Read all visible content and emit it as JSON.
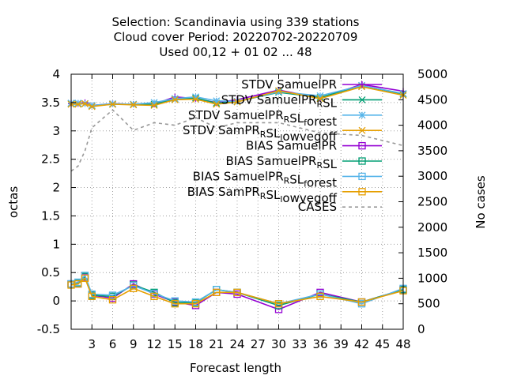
{
  "chart_data": {
    "type": "line",
    "title_lines": [
      "Selection: Scandinavia using   339 stations",
      "Cloud cover   Period: 20220702-20220709",
      "Used  00,12  + 01 02 ... 48"
    ],
    "xlabel": "Forecast length",
    "ylabel": "octas",
    "y2label": "No cases",
    "xlim": [
      0,
      48
    ],
    "ylim": [
      -0.5,
      4
    ],
    "y2lim": [
      0,
      5000
    ],
    "xticks": [
      3,
      6,
      9,
      12,
      15,
      18,
      21,
      24,
      27,
      30,
      33,
      36,
      39,
      42,
      45,
      48
    ],
    "yticks": [
      "-0.5",
      "0",
      "0.5",
      "1",
      "1.5",
      "2",
      "2.5",
      "3",
      "3.5",
      "4"
    ],
    "y2ticks": [
      0,
      500,
      1000,
      1500,
      2000,
      2500,
      3000,
      3500,
      4000,
      4500,
      5000
    ],
    "legend_position": "top-right",
    "x": [
      0,
      1,
      2,
      3,
      6,
      9,
      12,
      15,
      18,
      21,
      24,
      30,
      36,
      42,
      48
    ],
    "series": [
      {
        "name": "STDV SamuelPR",
        "name_parts": [
          [
            "STDV SamuelPR",
            ""
          ]
        ],
        "color": "#9400d3",
        "marker": "plus",
        "dash": "",
        "axis": "y",
        "values": [
          3.48,
          3.48,
          3.5,
          3.45,
          3.48,
          3.47,
          3.47,
          3.6,
          3.57,
          3.5,
          3.55,
          3.72,
          3.58,
          3.82,
          3.7
        ]
      },
      {
        "name": "STDV SamuelPR_R SL",
        "name_parts": [
          [
            "STDV SamuelPR",
            ""
          ],
          [
            "R",
            "sub"
          ],
          [
            "SL",
            ""
          ]
        ],
        "color": "#009e73",
        "marker": "x",
        "dash": "",
        "axis": "y",
        "values": [
          3.48,
          3.48,
          3.48,
          3.44,
          3.47,
          3.47,
          3.47,
          3.56,
          3.58,
          3.49,
          3.52,
          3.68,
          3.59,
          3.8,
          3.65
        ]
      },
      {
        "name": "STDV SamuelPR_R SL_forest",
        "name_parts": [
          [
            "STDV SamuelPR",
            ""
          ],
          [
            "R",
            "sub"
          ],
          [
            "SL",
            ""
          ],
          [
            "f",
            "sub"
          ],
          [
            "orest",
            ""
          ]
        ],
        "color": "#56b4e9",
        "marker": "star",
        "dash": "",
        "axis": "y",
        "values": [
          3.49,
          3.49,
          3.48,
          3.45,
          3.48,
          3.47,
          3.5,
          3.57,
          3.6,
          3.53,
          3.52,
          3.69,
          3.62,
          3.8,
          3.66
        ]
      },
      {
        "name": "STDV SamPR_R SL_owvegoff",
        "name_parts": [
          [
            "STDV SamPR",
            ""
          ],
          [
            "R",
            "sub"
          ],
          [
            "SL",
            ""
          ],
          [
            "l",
            "sub"
          ],
          [
            "owvegoff",
            ""
          ]
        ],
        "color": "#e69f00",
        "marker": "x",
        "dash": "",
        "axis": "y",
        "values": [
          3.47,
          3.47,
          3.48,
          3.43,
          3.47,
          3.46,
          3.45,
          3.55,
          3.56,
          3.47,
          3.51,
          3.71,
          3.57,
          3.78,
          3.63
        ]
      },
      {
        "name": "BIAS SamuelPR",
        "name_parts": [
          [
            "BIAS SamuelPR",
            ""
          ]
        ],
        "color": "#9400d3",
        "marker": "square",
        "dash": "",
        "axis": "y",
        "values": [
          0.3,
          0.3,
          0.42,
          0.1,
          0.05,
          0.3,
          0.12,
          -0.02,
          -0.08,
          0.15,
          0.12,
          -0.15,
          0.15,
          -0.02,
          0.2
        ]
      },
      {
        "name": "BIAS SamuelPR_R SL",
        "name_parts": [
          [
            "BIAS SamuelPR",
            ""
          ],
          [
            "R",
            "sub"
          ],
          [
            "SL",
            ""
          ]
        ],
        "color": "#009e73",
        "marker": "square",
        "dash": "",
        "axis": "y",
        "values": [
          0.3,
          0.32,
          0.43,
          0.1,
          0.08,
          0.28,
          0.15,
          -0.03,
          -0.03,
          0.2,
          0.15,
          -0.08,
          0.12,
          -0.02,
          0.2
        ]
      },
      {
        "name": "BIAS SamuelPR_R SL_forest",
        "name_parts": [
          [
            "BIAS SamuelPR",
            ""
          ],
          [
            "R",
            "sub"
          ],
          [
            "SL",
            ""
          ],
          [
            "f",
            "sub"
          ],
          [
            "orest",
            ""
          ]
        ],
        "color": "#56b4e9",
        "marker": "square",
        "dash": "",
        "axis": "y",
        "values": [
          0.3,
          0.33,
          0.45,
          0.12,
          0.1,
          0.27,
          0.13,
          0.0,
          -0.02,
          0.2,
          0.15,
          -0.05,
          0.12,
          -0.05,
          0.22
        ]
      },
      {
        "name": "BIAS SamPR_R SL_owvegoff",
        "name_parts": [
          [
            "BIAS SamPR",
            ""
          ],
          [
            "R",
            "sub"
          ],
          [
            "SL",
            ""
          ],
          [
            "l",
            "sub"
          ],
          [
            "owvegoff",
            ""
          ]
        ],
        "color": "#e69f00",
        "marker": "square",
        "dash": "",
        "axis": "y",
        "values": [
          0.28,
          0.3,
          0.4,
          0.08,
          0.02,
          0.22,
          0.08,
          -0.05,
          -0.05,
          0.15,
          0.15,
          -0.05,
          0.08,
          -0.02,
          0.18
        ]
      },
      {
        "name": "CASES",
        "name_parts": [
          [
            "CASES",
            ""
          ]
        ],
        "color": "#999999",
        "marker": "none",
        "dash": "4,4",
        "axis": "y2",
        "x": [
          0,
          1,
          2,
          3,
          6,
          9,
          12,
          15,
          18,
          21,
          24,
          30,
          36,
          42,
          48
        ],
        "values": [
          3100,
          3200,
          3500,
          3950,
          4300,
          3900,
          4050,
          4000,
          4150,
          3950,
          4050,
          4050,
          3850,
          3800,
          3600
        ]
      }
    ]
  }
}
